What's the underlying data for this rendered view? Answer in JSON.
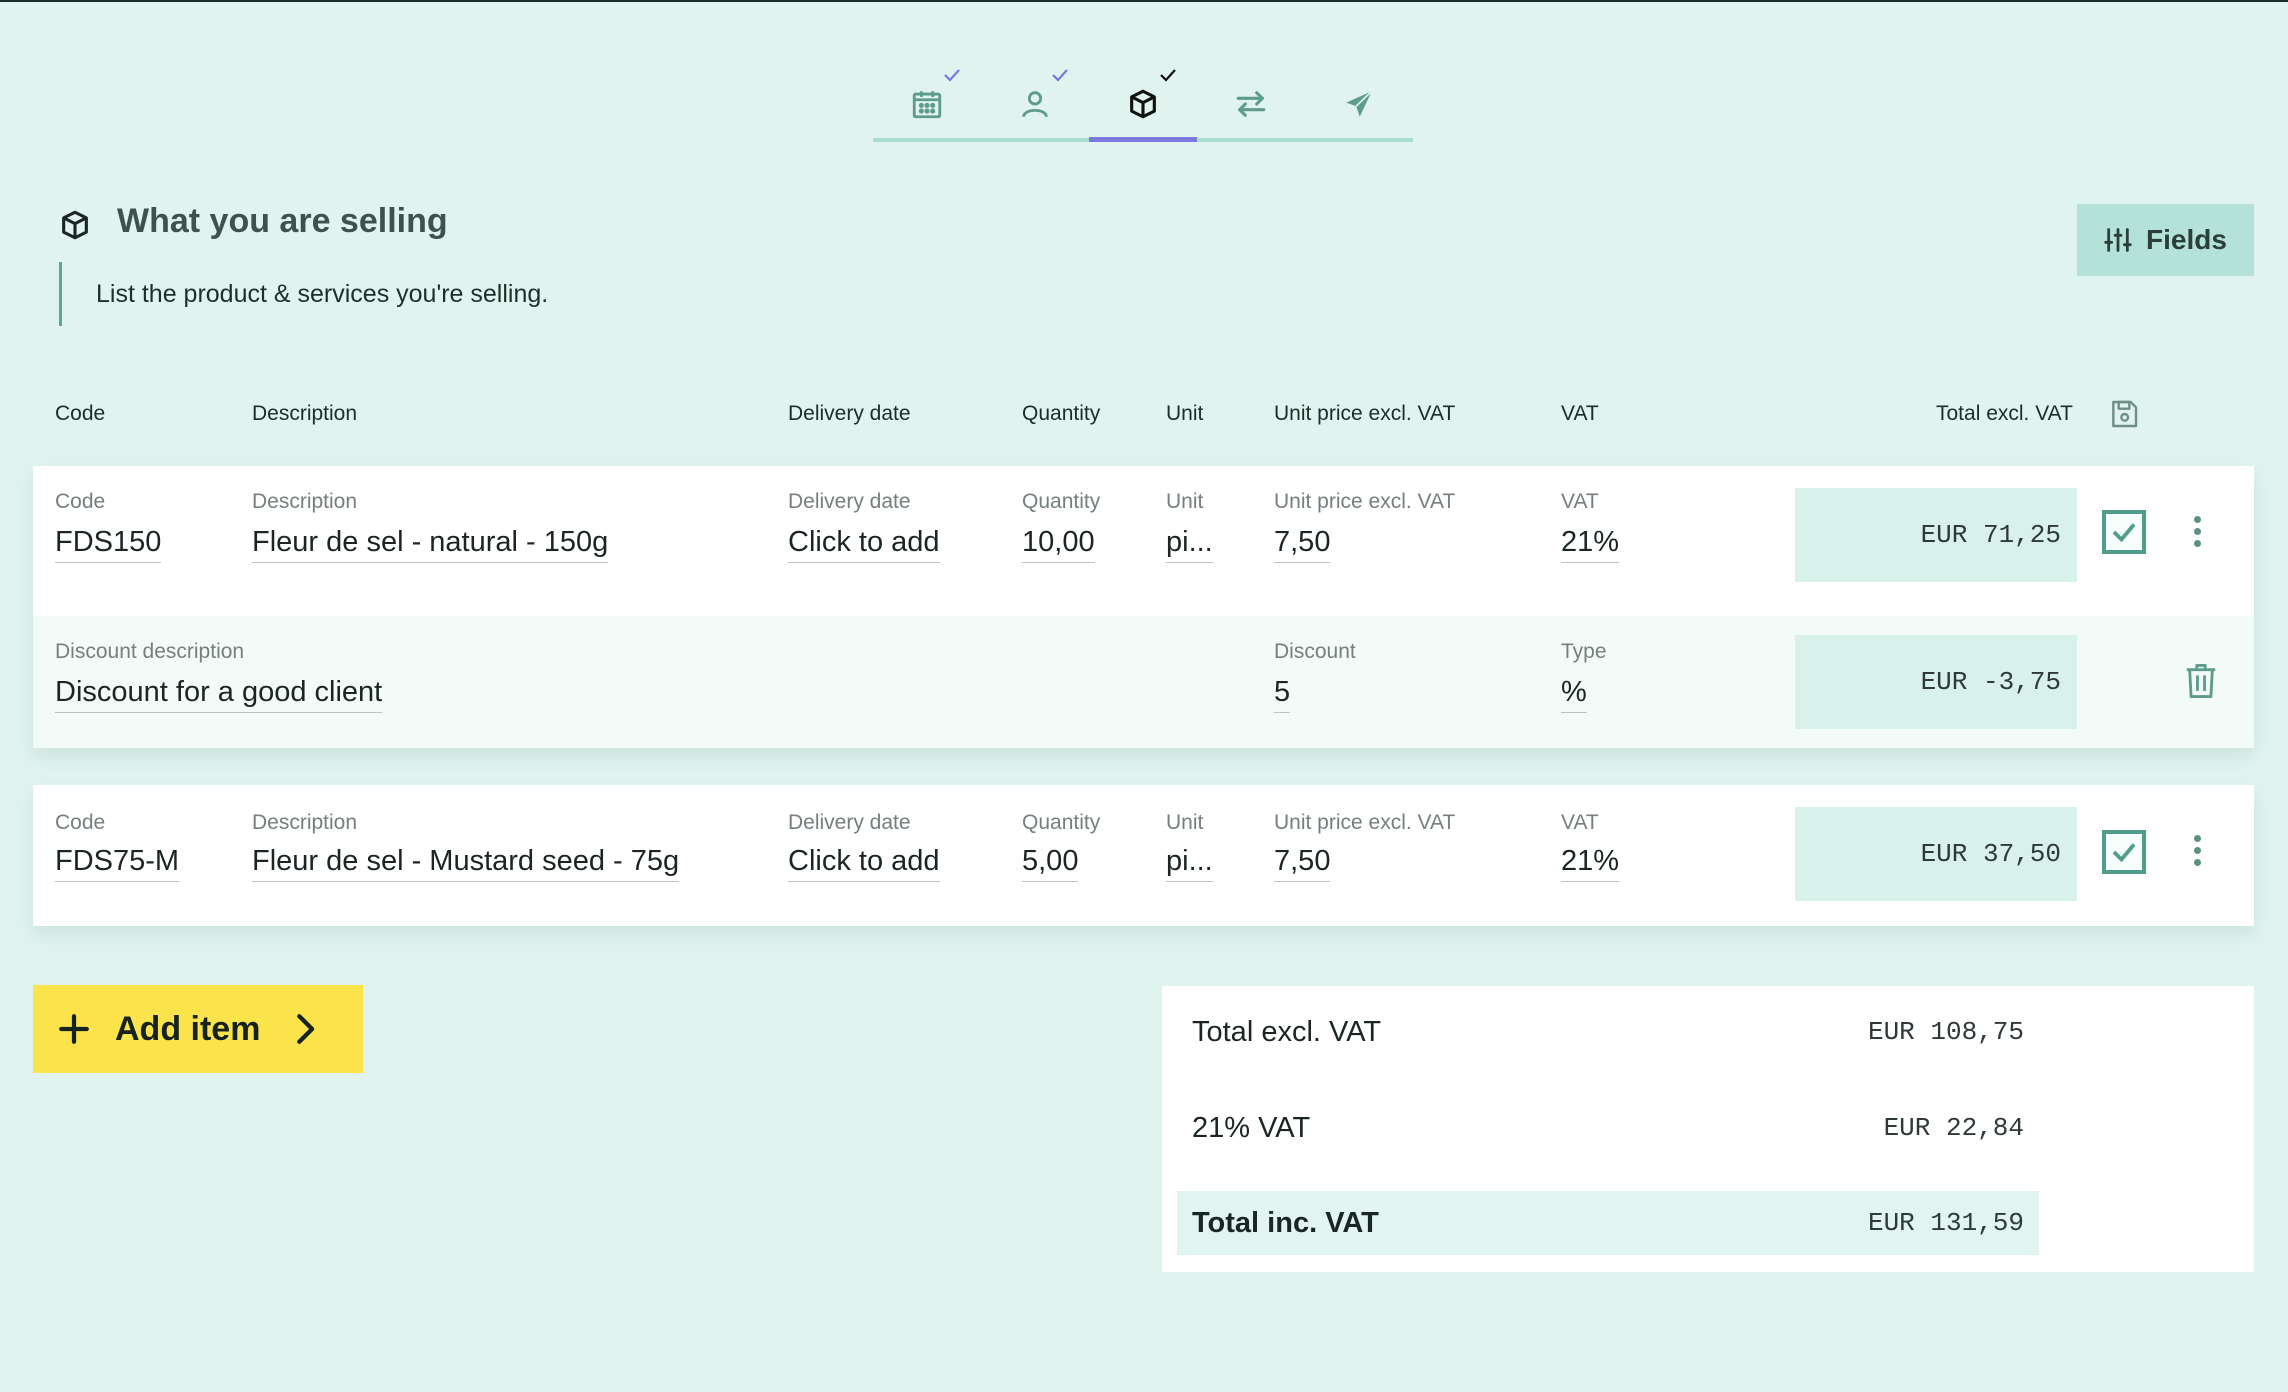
{
  "stepper": {
    "steps": [
      {
        "icon": "calendar-icon",
        "done": true
      },
      {
        "icon": "person-icon",
        "done": true
      },
      {
        "icon": "box-icon",
        "done": true,
        "active": true
      },
      {
        "icon": "swap-arrows-icon",
        "done": false
      },
      {
        "icon": "paper-plane-icon",
        "done": false
      }
    ],
    "accent_color": "#7b79dd"
  },
  "section": {
    "title": "What you are selling",
    "subtitle": "List the product & services you're selling.",
    "fields_button": "Fields"
  },
  "columns": {
    "code": "Code",
    "description": "Description",
    "delivery_date": "Delivery date",
    "quantity": "Quantity",
    "unit": "Unit",
    "unit_price": "Unit price excl. VAT",
    "vat": "VAT",
    "total": "Total excl. VAT"
  },
  "items": [
    {
      "labels": {
        "code": "Code",
        "description": "Description",
        "delivery_date": "Delivery date",
        "quantity": "Quantity",
        "unit": "Unit",
        "unit_price": "Unit price excl. VAT",
        "vat": "VAT"
      },
      "code": "FDS150",
      "description": "Fleur de sel - natural - 150g",
      "delivery_date": "Click to add",
      "quantity": "10,00",
      "unit": "pi...",
      "unit_price": "7,50",
      "vat": "21%",
      "total": "EUR 71,25",
      "checked": true,
      "discount": {
        "description_label": "Discount description",
        "description": "Discount for a good client",
        "value_label": "Discount",
        "value": "5",
        "type_label": "Type",
        "type": "%",
        "total": "EUR -3,75"
      }
    },
    {
      "labels": {
        "code": "Code",
        "description": "Description",
        "delivery_date": "Delivery date",
        "quantity": "Quantity",
        "unit": "Unit",
        "unit_price": "Unit price excl. VAT",
        "vat": "VAT"
      },
      "code": "FDS75-M",
      "description": "Fleur de sel - Mustard seed - 75g",
      "delivery_date": "Click to add",
      "quantity": "5,00",
      "unit": "pi...",
      "unit_price": "7,50",
      "vat": "21%",
      "total": "EUR 37,50",
      "checked": true
    }
  ],
  "add_item_label": "Add item",
  "totals": {
    "excl_label": "Total excl. VAT",
    "excl_value": "EUR 108,75",
    "vat_label": "21% VAT",
    "vat_value": "EUR 22,84",
    "incl_label": "Total inc. VAT",
    "incl_value": "EUR 131,59"
  },
  "colors": {
    "background": "#e0f3ef",
    "add_button": "#fbe44b",
    "checkbox": "#4f9e8b"
  }
}
